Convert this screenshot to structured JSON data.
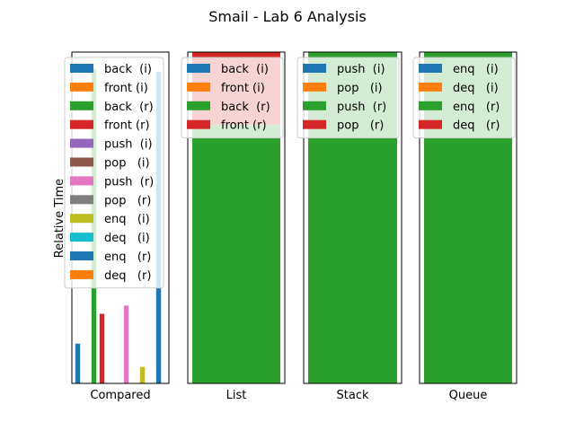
{
  "title": "Smail - Lab 6 Analysis",
  "ylabel": "Relative Time",
  "colors": {
    "c0": "#1f77b4",
    "c1": "#ff7f0e",
    "c2": "#2ca02c",
    "c3": "#d62728",
    "c4": "#9467bd",
    "c5": "#8c564b",
    "c6": "#e377c2",
    "c7": "#7f7f7f",
    "c8": "#bcbd22",
    "c9": "#17becf"
  },
  "chart_data": [
    {
      "type": "bar",
      "xlabel": "Compared",
      "ylim": [
        0,
        1
      ],
      "legend_placement": "upper right",
      "categories": [
        "back  (i)",
        "front (i)",
        "back  (r)",
        "front (r)",
        "push  (i)",
        "pop   (i)",
        "push  (r)",
        "pop   (r)",
        "enq   (i)",
        "deq   (i)",
        "enq   (r)",
        "deq   (r)"
      ],
      "series": [
        {
          "name": "back  (i)",
          "value": 0.12,
          "color": "c0"
        },
        {
          "name": "front (i)",
          "value": 0.0,
          "color": "c1"
        },
        {
          "name": "back  (r)",
          "value": 0.95,
          "color": "c2"
        },
        {
          "name": "front (r)",
          "value": 0.21,
          "color": "c3"
        },
        {
          "name": "push  (i)",
          "value": 0.0,
          "color": "c4"
        },
        {
          "name": "pop   (i)",
          "value": 0.0,
          "color": "c5"
        },
        {
          "name": "push  (r)",
          "value": 0.235,
          "color": "c6"
        },
        {
          "name": "pop   (r)",
          "value": 0.0,
          "color": "c7"
        },
        {
          "name": "enq   (i)",
          "value": 0.05,
          "color": "c8"
        },
        {
          "name": "deq   (i)",
          "value": 0.0,
          "color": "c9"
        },
        {
          "name": "enq   (r)",
          "value": 0.94,
          "color": "c0"
        },
        {
          "name": "deq   (r)",
          "value": 0.0,
          "color": "c1"
        }
      ]
    },
    {
      "type": "bar",
      "stacked": true,
      "xlabel": "List",
      "ylim": [
        0,
        1
      ],
      "legend_placement": "upper right",
      "series": [
        {
          "name": "back  (i)",
          "value": 0.0,
          "color": "c0"
        },
        {
          "name": "front (i)",
          "value": 0.0,
          "color": "c1"
        },
        {
          "name": "back  (r)",
          "value": 0.78,
          "color": "c2"
        },
        {
          "name": "front (r)",
          "value": 0.22,
          "color": "c3"
        }
      ]
    },
    {
      "type": "bar",
      "stacked": true,
      "xlabel": "Stack",
      "ylim": [
        0,
        1
      ],
      "legend_placement": "upper right",
      "series": [
        {
          "name": "push  (i)",
          "value": 0.0,
          "color": "c0"
        },
        {
          "name": "pop   (i)",
          "value": 0.0,
          "color": "c1"
        },
        {
          "name": "push  (r)",
          "value": 1.0,
          "color": "c2"
        },
        {
          "name": "pop   (r)",
          "value": 0.0,
          "color": "c3"
        }
      ]
    },
    {
      "type": "bar",
      "stacked": true,
      "xlabel": "Queue",
      "ylim": [
        0,
        1
      ],
      "legend_placement": "upper right",
      "series": [
        {
          "name": "enq   (i)",
          "value": 0.0,
          "color": "c0"
        },
        {
          "name": "deq   (i)",
          "value": 0.0,
          "color": "c1"
        },
        {
          "name": "enq   (r)",
          "value": 1.0,
          "color": "c2"
        },
        {
          "name": "deq   (r)",
          "value": 0.0,
          "color": "c3"
        }
      ]
    }
  ]
}
